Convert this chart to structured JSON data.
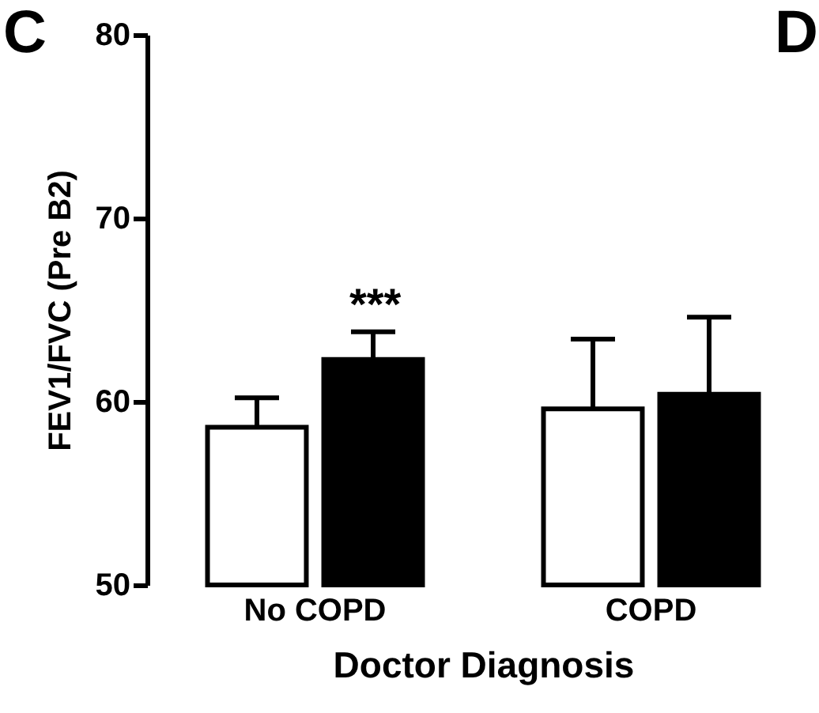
{
  "chart_data": {
    "type": "bar",
    "ylabel": "FEV1/FVC (Pre B2)",
    "xlabel": "Doctor Diagnosis",
    "categories": [
      "No COPD",
      "COPD"
    ],
    "series": [
      {
        "color": "#ffffff",
        "values": [
          58.6,
          59.6
        ],
        "errors": [
          [
            58.6,
            60.2
          ],
          [
            59.6,
            63.4
          ]
        ]
      },
      {
        "color": "#000000",
        "values": [
          62.3,
          60.4
        ],
        "errors": [
          [
            62.3,
            63.8
          ],
          [
            60.4,
            64.6
          ]
        ]
      }
    ],
    "ylim": [
      50,
      80
    ],
    "yticks": [
      50,
      60,
      70,
      80
    ],
    "annotations": [
      "C",
      "D",
      "***"
    ]
  }
}
